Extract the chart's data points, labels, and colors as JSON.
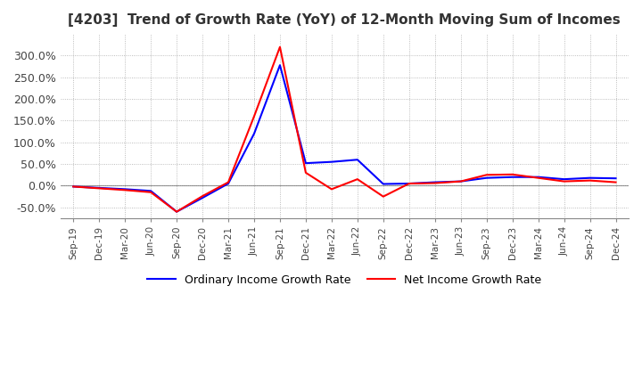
{
  "title": "[4203]  Trend of Growth Rate (YoY) of 12-Month Moving Sum of Incomes",
  "title_fontsize": 11,
  "ylim": [
    -0.75,
    3.5
  ],
  "yticks": [
    -0.5,
    0.0,
    0.5,
    1.0,
    1.5,
    2.0,
    2.5,
    3.0
  ],
  "ytick_labels": [
    "-50.0%",
    "0.0%",
    "50.0%",
    "100.0%",
    "150.0%",
    "200.0%",
    "250.0%",
    "300.0%"
  ],
  "legend_labels": [
    "Ordinary Income Growth Rate",
    "Net Income Growth Rate"
  ],
  "line_colors": [
    "blue",
    "red"
  ],
  "background_color": "#ffffff",
  "grid_color": "#aaaaaa",
  "dates": [
    "Sep-19",
    "Dec-19",
    "Mar-20",
    "Jun-20",
    "Sep-20",
    "Dec-20",
    "Mar-21",
    "Jun-21",
    "Sep-21",
    "Dec-21",
    "Mar-22",
    "Jun-22",
    "Sep-22",
    "Dec-22",
    "Mar-23",
    "Jun-23",
    "Sep-23",
    "Dec-23",
    "Mar-24",
    "Jun-24",
    "Sep-24",
    "Dec-24"
  ],
  "ordinary_income": [
    -0.02,
    -0.05,
    -0.08,
    -0.12,
    -0.6,
    -0.28,
    0.05,
    1.2,
    2.78,
    0.52,
    0.55,
    0.6,
    0.04,
    0.05,
    0.08,
    0.1,
    0.18,
    0.2,
    0.2,
    0.15,
    0.18,
    0.17
  ],
  "net_income": [
    -0.02,
    -0.06,
    -0.1,
    -0.15,
    -0.6,
    -0.24,
    0.08,
    1.6,
    3.2,
    0.3,
    -0.08,
    0.15,
    -0.25,
    0.05,
    0.06,
    0.1,
    0.25,
    0.26,
    0.18,
    0.1,
    0.12,
    0.08
  ]
}
